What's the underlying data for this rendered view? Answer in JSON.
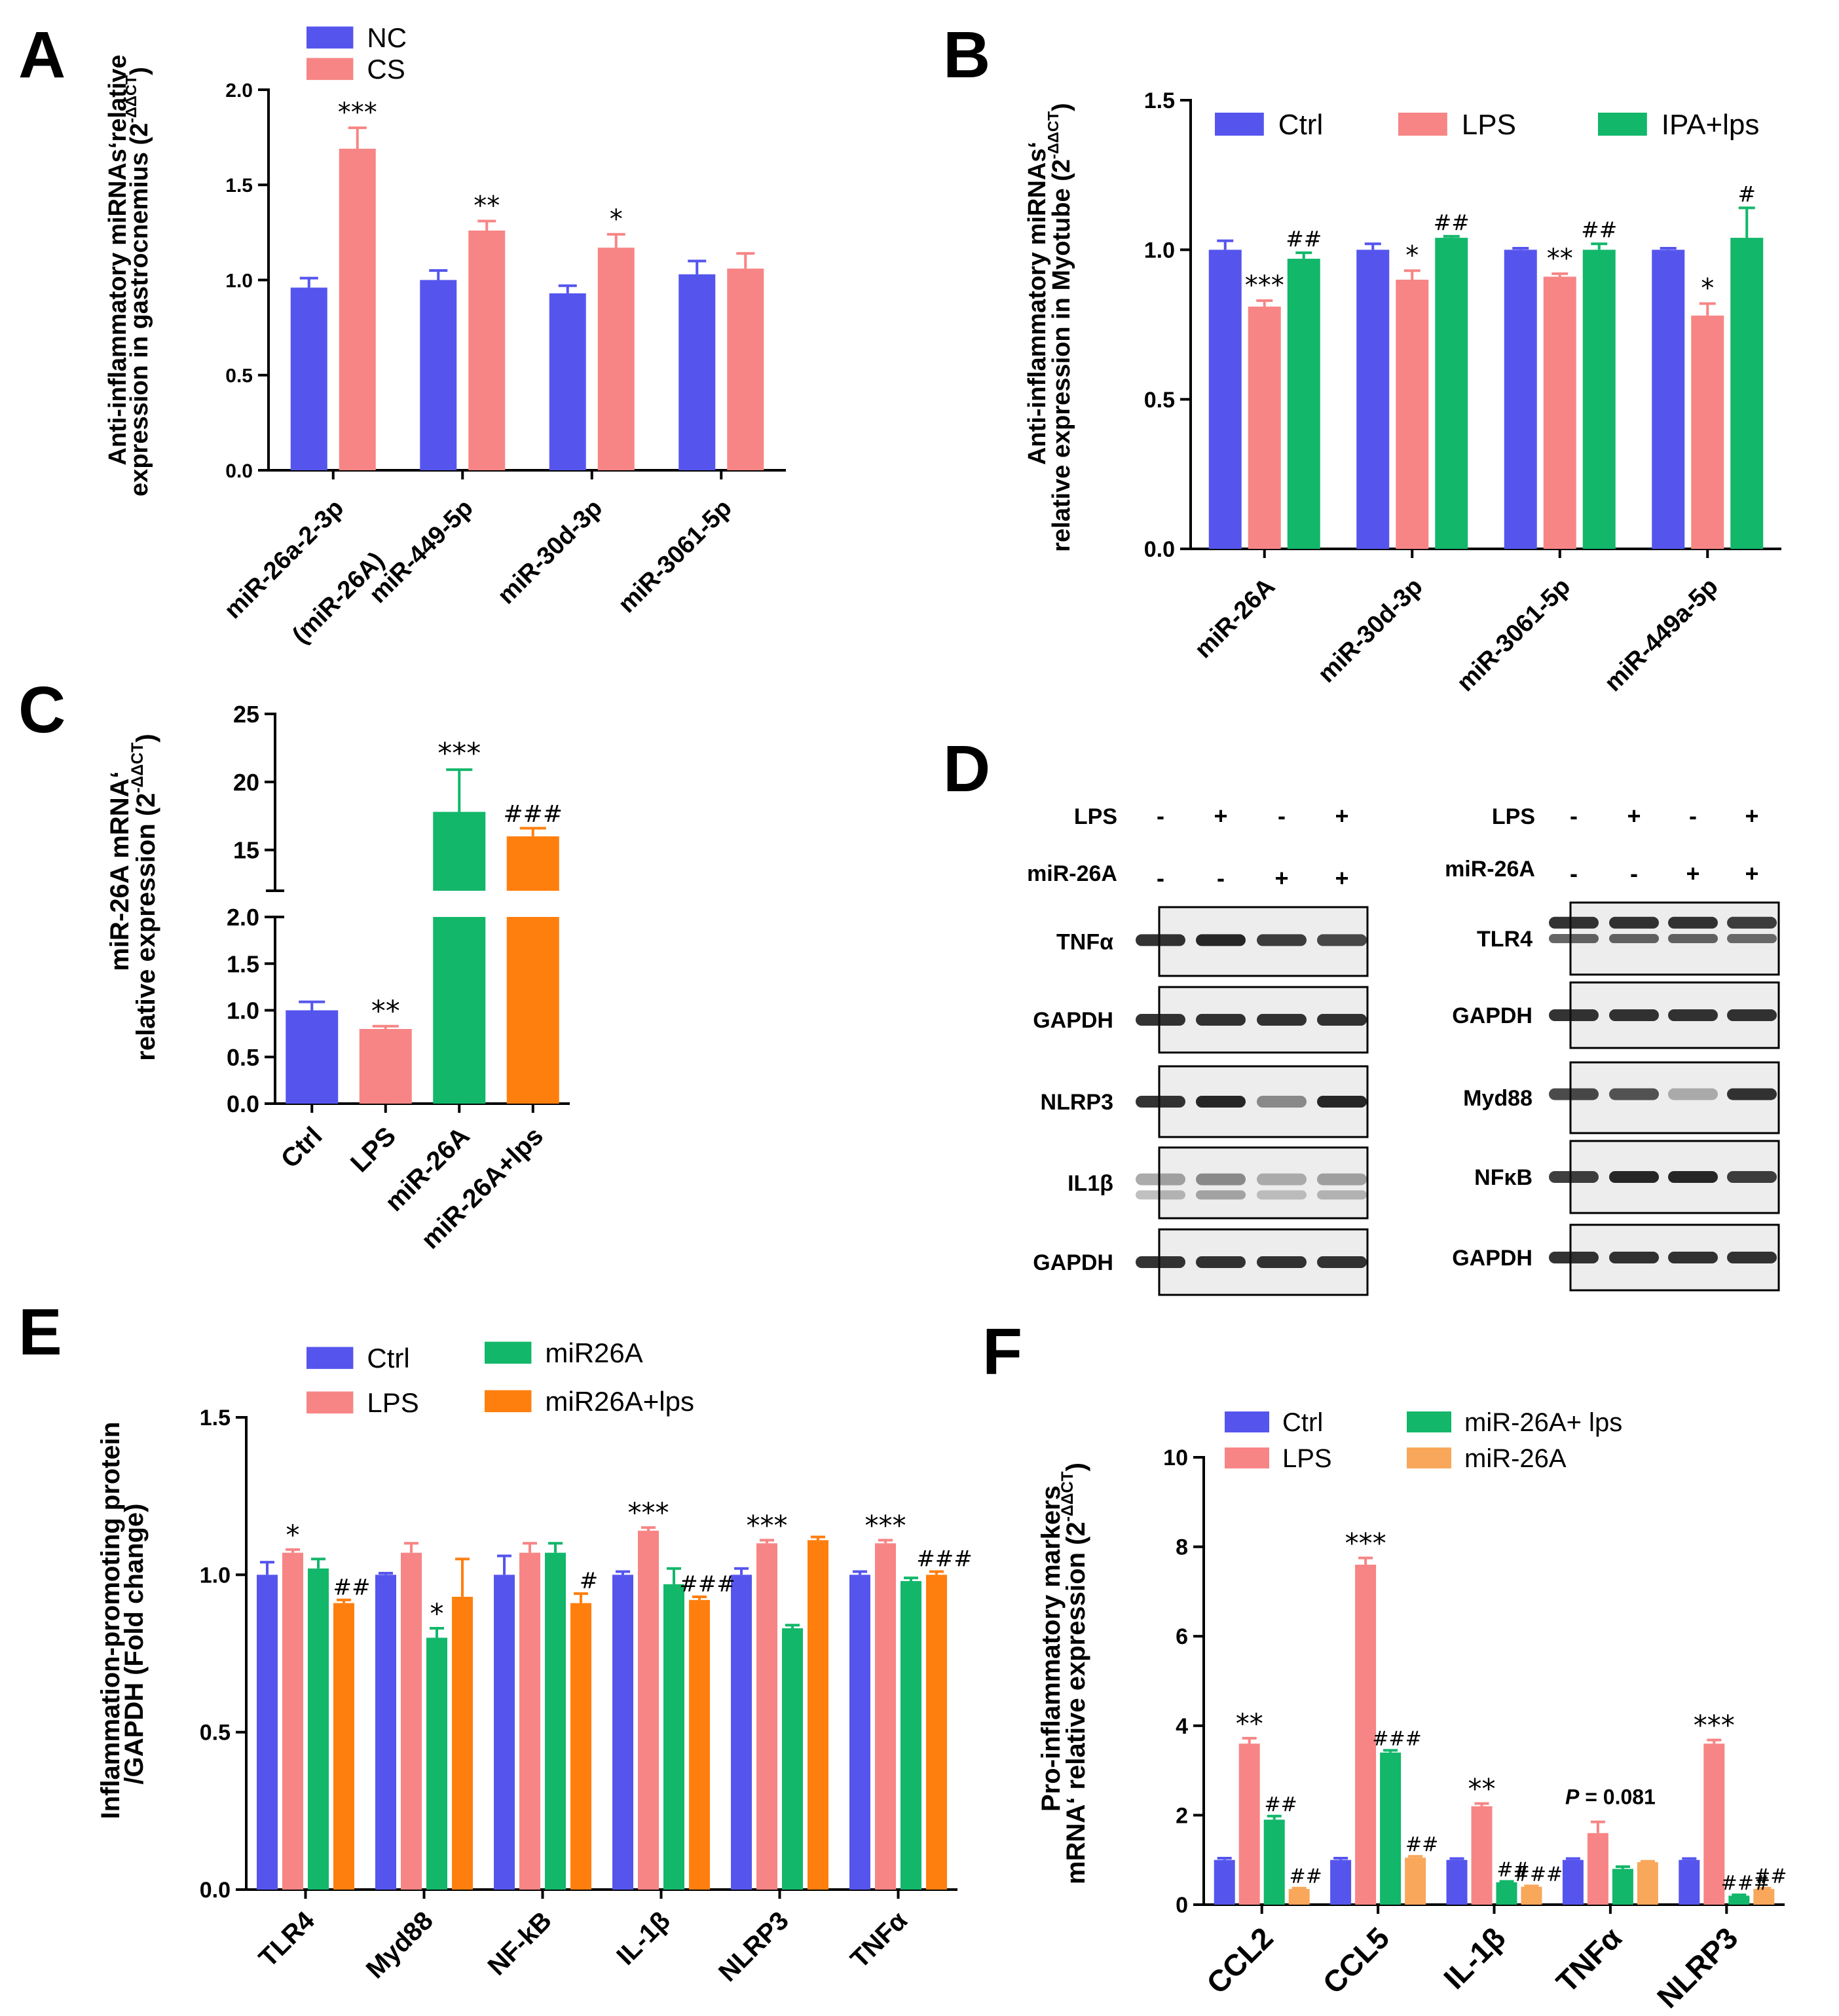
{
  "colors": {
    "blue": "#5555ee",
    "pink": "#f78585",
    "green": "#12b76a",
    "orange": "#ff7f0e",
    "lightorange": "#f9a75b"
  },
  "panel_letters": {
    "A": "A",
    "B": "B",
    "C": "C",
    "D": "D",
    "E": "E",
    "F": "F"
  },
  "chart_data": [
    {
      "id": "A",
      "type": "bar",
      "ylabel_line1": "Anti-inflammatory miRNAs‘relative",
      "ylabel_line2": "expression in  gastrocnemius (2",
      "ylabel_sup": "-ΔΔCT",
      "ylabel_close": ")",
      "ylim": [
        0,
        2.0
      ],
      "ytick_labels": [
        "0.0",
        "0.5",
        "1.0",
        "1.5",
        "2.0"
      ],
      "categories": [
        "miR-26a-2-3p",
        "miR-449-5p",
        "miR-30d-3p",
        "miR-3061-5p"
      ],
      "category_sublabel": "(miR-26A)",
      "series": [
        {
          "name": "NC",
          "color": "#5555ee",
          "values": [
            0.96,
            1.0,
            0.93,
            1.03
          ],
          "errors": [
            0.05,
            0.05,
            0.04,
            0.07
          ],
          "sig": [
            "",
            "",
            "",
            ""
          ]
        },
        {
          "name": "CS",
          "color": "#f78585",
          "values": [
            1.69,
            1.26,
            1.17,
            1.06
          ],
          "errors": [
            0.11,
            0.05,
            0.07,
            0.08
          ],
          "sig": [
            "***",
            "**",
            "*",
            ""
          ]
        }
      ]
    },
    {
      "id": "B",
      "type": "bar",
      "ylabel_line1": "Anti-inflammatory miRNAs‘",
      "ylabel_line2": "relative expression in Myotube (2",
      "ylabel_sup": "-ΔΔCT",
      "ylabel_close": ")",
      "ylim": [
        0,
        1.5
      ],
      "ytick_labels": [
        "0.0",
        "0.5",
        "1.0",
        "1.5"
      ],
      "categories": [
        "miR-26A",
        "miR-30d-3p",
        "miR-3061-5p",
        "miR-449a-5p"
      ],
      "series": [
        {
          "name": "Ctrl",
          "color": "#5555ee",
          "values": [
            1.0,
            1.0,
            1.0,
            1.0
          ],
          "errors": [
            0.03,
            0.02,
            0.005,
            0.005
          ],
          "sig": [
            "",
            "",
            "",
            ""
          ]
        },
        {
          "name": "LPS",
          "color": "#f78585",
          "values": [
            0.81,
            0.9,
            0.91,
            0.78
          ],
          "errors": [
            0.02,
            0.03,
            0.01,
            0.04
          ],
          "sig": [
            "***",
            "*",
            "**",
            "*"
          ]
        },
        {
          "name": "IPA+lps",
          "color": "#12b76a",
          "values": [
            0.97,
            1.04,
            1.0,
            1.04
          ],
          "errors": [
            0.02,
            0.005,
            0.02,
            0.1
          ],
          "sig": [
            "##",
            "##",
            "##",
            "#"
          ]
        }
      ]
    },
    {
      "id": "C",
      "type": "bar",
      "ylabel_line1": "miR-26A mRNA‘",
      "ylabel_line2": "relative expression (2",
      "ylabel_sup": "-ΔΔCT",
      "ylabel_close": ")",
      "ylim_lower": [
        0,
        2.0
      ],
      "ylim_upper": [
        12,
        25
      ],
      "ytick_labels_lower": [
        "0.0",
        "0.5",
        "1.0",
        "1.5",
        "2.0"
      ],
      "ytick_labels_upper": [
        "15",
        "20",
        "25"
      ],
      "categories": [
        "Ctrl",
        "LPS",
        "miR-26A",
        "miR-26A+lps"
      ],
      "bar_colors": [
        "#5555ee",
        "#f78585",
        "#12b76a",
        "#ff7f0e"
      ],
      "values": [
        1.0,
        0.8,
        17.8,
        16.0
      ],
      "errors": [
        0.09,
        0.03,
        3.1,
        0.6
      ],
      "sig": [
        "",
        "**",
        "***",
        "###"
      ]
    },
    {
      "id": "E",
      "type": "bar",
      "ylabel_line1": "Inflammation-promoting protein",
      "ylabel_line2": "/GAPDH (Fold change)",
      "ylim": [
        0,
        1.5
      ],
      "ytick_labels": [
        "0.0",
        "0.5",
        "1.0",
        "1.5"
      ],
      "categories": [
        "TLR4",
        "Myd88",
        "NF-kB",
        "IL-1β",
        "NLRP3",
        "TNFα"
      ],
      "series": [
        {
          "name": "Ctrl",
          "color": "#5555ee",
          "values": [
            1.0,
            1.0,
            1.0,
            1.0,
            1.0,
            1.0
          ],
          "errors": [
            0.04,
            0.005,
            0.06,
            0.01,
            0.02,
            0.01
          ]
        },
        {
          "name": "LPS",
          "color": "#f78585",
          "values": [
            1.07,
            1.07,
            1.07,
            1.14,
            1.1,
            1.1
          ],
          "errors": [
            0.01,
            0.03,
            0.03,
            0.01,
            0.01,
            0.01
          ]
        },
        {
          "name": "miR26A",
          "color": "#12b76a",
          "values": [
            1.02,
            0.8,
            1.07,
            0.97,
            0.83,
            0.98
          ],
          "errors": [
            0.03,
            0.03,
            0.03,
            0.05,
            0.01,
            0.01
          ]
        },
        {
          "name": "miR26A+lps",
          "color": "#ff7f0e",
          "values": [
            0.91,
            0.93,
            0.91,
            0.92,
            1.11,
            1.0
          ],
          "errors": [
            0.01,
            0.12,
            0.03,
            0.01,
            0.01,
            0.01
          ]
        }
      ],
      "sig": [
        {
          "cat": 0,
          "series": 1,
          "text": "*"
        },
        {
          "cat": 0,
          "series": 3,
          "text": "##"
        },
        {
          "cat": 1,
          "series": 2,
          "text": "*"
        },
        {
          "cat": 2,
          "series": 3,
          "text": "#"
        },
        {
          "cat": 3,
          "series": 1,
          "text": "***"
        },
        {
          "cat": 3,
          "series": 3,
          "text": "###"
        },
        {
          "cat": 4,
          "series": 1,
          "text": "***"
        },
        {
          "cat": 5,
          "series": 1,
          "text": "***"
        },
        {
          "cat": 5,
          "series": 3,
          "text": "###"
        }
      ]
    },
    {
      "id": "F",
      "type": "bar",
      "ylabel_line1": "Pro-inflammatory markers",
      "ylabel_line2": "mRNA‘ relative expression (2",
      "ylabel_sup": "-ΔΔCT",
      "ylabel_close": ")",
      "ylim": [
        0,
        10
      ],
      "ytick_labels": [
        "0",
        "2",
        "4",
        "6",
        "8",
        "10"
      ],
      "categories": [
        "CCL2",
        "CCL5",
        "IL-1β",
        "TNFα",
        "NLRP3"
      ],
      "series": [
        {
          "name": "Ctrl",
          "color": "#5555ee",
          "values": [
            1.0,
            1.0,
            1.0,
            1.0,
            1.0
          ],
          "errors": [
            0.04,
            0.04,
            0.03,
            0.03,
            0.03
          ]
        },
        {
          "name": "LPS",
          "color": "#f78585",
          "values": [
            3.6,
            7.6,
            2.2,
            1.6,
            3.6
          ],
          "errors": [
            0.12,
            0.15,
            0.06,
            0.25,
            0.08
          ]
        },
        {
          "name": "miR-26A+ lps",
          "color": "#12b76a",
          "values": [
            1.9,
            3.4,
            0.5,
            0.8,
            0.2
          ],
          "errors": [
            0.08,
            0.05,
            0.02,
            0.05,
            0.02
          ]
        },
        {
          "name": "miR-26A",
          "color": "#f9a75b",
          "values": [
            0.35,
            1.05,
            0.4,
            0.95,
            0.35
          ],
          "errors": [
            0.02,
            0.03,
            0.02,
            0.02,
            0.02
          ]
        }
      ],
      "sig": [
        {
          "cat": 0,
          "series": 1,
          "text": "**"
        },
        {
          "cat": 0,
          "series": 2,
          "text": "##"
        },
        {
          "cat": 0,
          "series": 3,
          "text": "##"
        },
        {
          "cat": 1,
          "series": 1,
          "text": "***"
        },
        {
          "cat": 1,
          "series": 2,
          "text": "###"
        },
        {
          "cat": 1,
          "series": 3,
          "text": "##"
        },
        {
          "cat": 2,
          "series": 1,
          "text": "**"
        },
        {
          "cat": 2,
          "series": 2,
          "text": "##"
        },
        {
          "cat": 2,
          "series": 3,
          "text": "###"
        },
        {
          "cat": 4,
          "series": 1,
          "text": "***"
        },
        {
          "cat": 4,
          "series": 2,
          "text": "###"
        },
        {
          "cat": 4,
          "series": 3,
          "text": "##"
        }
      ],
      "annotation": "P = 0.081"
    }
  ],
  "western": {
    "left": {
      "row1_label": "LPS",
      "row1_signs": [
        "-",
        "+",
        "-",
        "+"
      ],
      "row2_label": "miR-26A",
      "row2_signs": [
        "-",
        "-",
        "+",
        "+"
      ],
      "blots": [
        "TNFα",
        "GAPDH",
        "NLRP3",
        "IL1β",
        "GAPDH"
      ]
    },
    "right": {
      "row1_label": "LPS",
      "row1_signs": [
        "-",
        "+",
        "-",
        "+"
      ],
      "row2_label": "miR-26A",
      "row2_signs": [
        "-",
        "-",
        "+",
        "+"
      ],
      "blots": [
        "TLR4",
        "GAPDH",
        "Myd88",
        "NFκB",
        "GAPDH"
      ]
    }
  }
}
